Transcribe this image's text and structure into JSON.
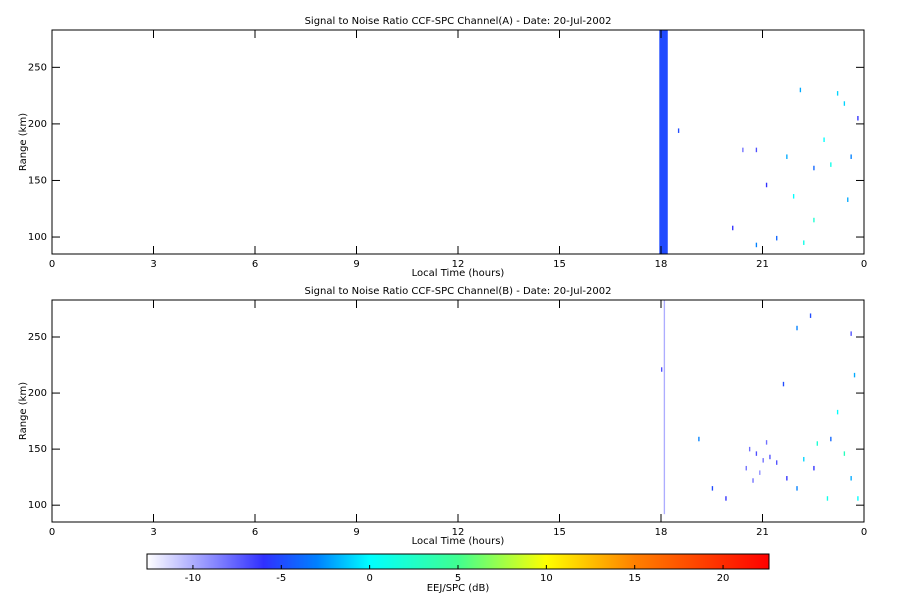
{
  "chart_data": [
    {
      "type": "heatmap",
      "title": "Signal to Noise Ratio CCF-SPC Channel(A) - Date: 20-Jul-2002",
      "xlabel": "Local Time (hours)",
      "ylabel": "Range (km)",
      "xlim": [
        0,
        24
      ],
      "xticks": [
        0,
        3,
        6,
        9,
        12,
        15,
        18,
        21,
        {
          "value": 24,
          "label": "0"
        }
      ],
      "ylim": [
        85,
        283
      ],
      "yticks": [
        100,
        150,
        200,
        250
      ],
      "cells": [
        [
          17.95,
          18.2,
          85,
          283,
          -5
        ],
        [
          22.1,
          22.14,
          228,
          232,
          -2
        ],
        [
          23.4,
          23.44,
          216,
          220,
          -1
        ],
        [
          22.8,
          22.84,
          184,
          188,
          0
        ],
        [
          23.6,
          23.64,
          169,
          173,
          -3
        ],
        [
          23.0,
          23.04,
          162,
          166,
          1
        ],
        [
          22.5,
          22.54,
          159,
          163,
          -4
        ],
        [
          20.8,
          20.84,
          175,
          179,
          -7
        ],
        [
          20.4,
          20.44,
          175,
          179,
          -8
        ],
        [
          21.7,
          21.74,
          169,
          173,
          -2
        ],
        [
          21.1,
          21.14,
          144,
          148,
          -6
        ],
        [
          21.9,
          21.94,
          134,
          138,
          0
        ],
        [
          22.5,
          22.54,
          113,
          117,
          2
        ],
        [
          21.4,
          21.44,
          97,
          101,
          -4
        ],
        [
          20.1,
          20.14,
          106,
          110,
          -6
        ],
        [
          20.8,
          20.84,
          91,
          95,
          -3
        ],
        [
          18.5,
          18.54,
          192,
          196,
          -5
        ],
        [
          23.5,
          23.54,
          131,
          135,
          -2
        ],
        [
          23.2,
          23.24,
          225,
          229,
          -1
        ],
        [
          23.8,
          23.84,
          203,
          207,
          -6
        ],
        [
          22.2,
          22.24,
          93,
          97,
          1
        ]
      ]
    },
    {
      "type": "heatmap",
      "title": "Signal to Noise Ratio CCF-SPC Channel(B) - Date: 20-Jul-2002",
      "xlabel": "Local Time (hours)",
      "ylabel": "Range (km)",
      "xlim": [
        0,
        24
      ],
      "xticks": [
        0,
        3,
        6,
        9,
        12,
        15,
        18,
        21,
        {
          "value": 24,
          "label": "0"
        }
      ],
      "ylim": [
        85,
        283
      ],
      "yticks": [
        100,
        150,
        200,
        250
      ],
      "cells": [
        [
          18.08,
          18.12,
          92,
          283,
          -10
        ],
        [
          20.6,
          20.64,
          148,
          152,
          -8
        ],
        [
          20.8,
          20.84,
          144,
          148,
          -7
        ],
        [
          21.0,
          21.04,
          138,
          142,
          -8
        ],
        [
          21.2,
          21.24,
          141,
          145,
          -7
        ],
        [
          20.5,
          20.54,
          131,
          135,
          -8
        ],
        [
          20.9,
          20.94,
          127,
          131,
          -9
        ],
        [
          21.1,
          21.14,
          154,
          158,
          -8
        ],
        [
          21.4,
          21.44,
          136,
          140,
          -7
        ],
        [
          20.7,
          20.74,
          120,
          124,
          -8
        ],
        [
          22.0,
          22.04,
          256,
          260,
          -3
        ],
        [
          22.4,
          22.44,
          267,
          271,
          -5
        ],
        [
          23.6,
          23.64,
          251,
          255,
          -7
        ],
        [
          23.7,
          23.74,
          214,
          218,
          -2
        ],
        [
          23.2,
          23.24,
          181,
          185,
          0
        ],
        [
          23.0,
          23.04,
          157,
          161,
          -4
        ],
        [
          22.5,
          22.54,
          131,
          135,
          -6
        ],
        [
          22.0,
          22.04,
          113,
          117,
          -3
        ],
        [
          22.9,
          22.94,
          104,
          108,
          1
        ],
        [
          23.6,
          23.64,
          122,
          126,
          -2
        ],
        [
          19.5,
          19.54,
          113,
          117,
          -5
        ],
        [
          19.1,
          19.14,
          157,
          161,
          -3
        ],
        [
          19.9,
          19.94,
          104,
          108,
          -6
        ],
        [
          18.0,
          18.04,
          219,
          223,
          -7
        ],
        [
          22.6,
          22.64,
          153,
          157,
          2
        ],
        [
          22.2,
          22.24,
          139,
          143,
          -1
        ],
        [
          21.7,
          21.74,
          122,
          126,
          -6
        ],
        [
          23.4,
          23.44,
          144,
          148,
          3
        ],
        [
          21.6,
          21.64,
          206,
          210,
          -5
        ],
        [
          23.8,
          23.84,
          104,
          108,
          0
        ]
      ]
    }
  ],
  "colorbar": {
    "label": "EEJ/SPC (dB)",
    "lim": [
      -12.6,
      22.6
    ],
    "ticks": [
      -10,
      -5,
      0,
      5,
      10,
      15,
      20
    ],
    "colorscale": [
      [
        -12.6,
        "#ffffff"
      ],
      [
        -6,
        "#3030ff"
      ],
      [
        -3,
        "#0080ff"
      ],
      [
        0,
        "#00ffff"
      ],
      [
        5,
        "#40ff90"
      ],
      [
        10,
        "#ffff00"
      ],
      [
        15,
        "#ff8000"
      ],
      [
        22.6,
        "#ff0000"
      ]
    ]
  }
}
